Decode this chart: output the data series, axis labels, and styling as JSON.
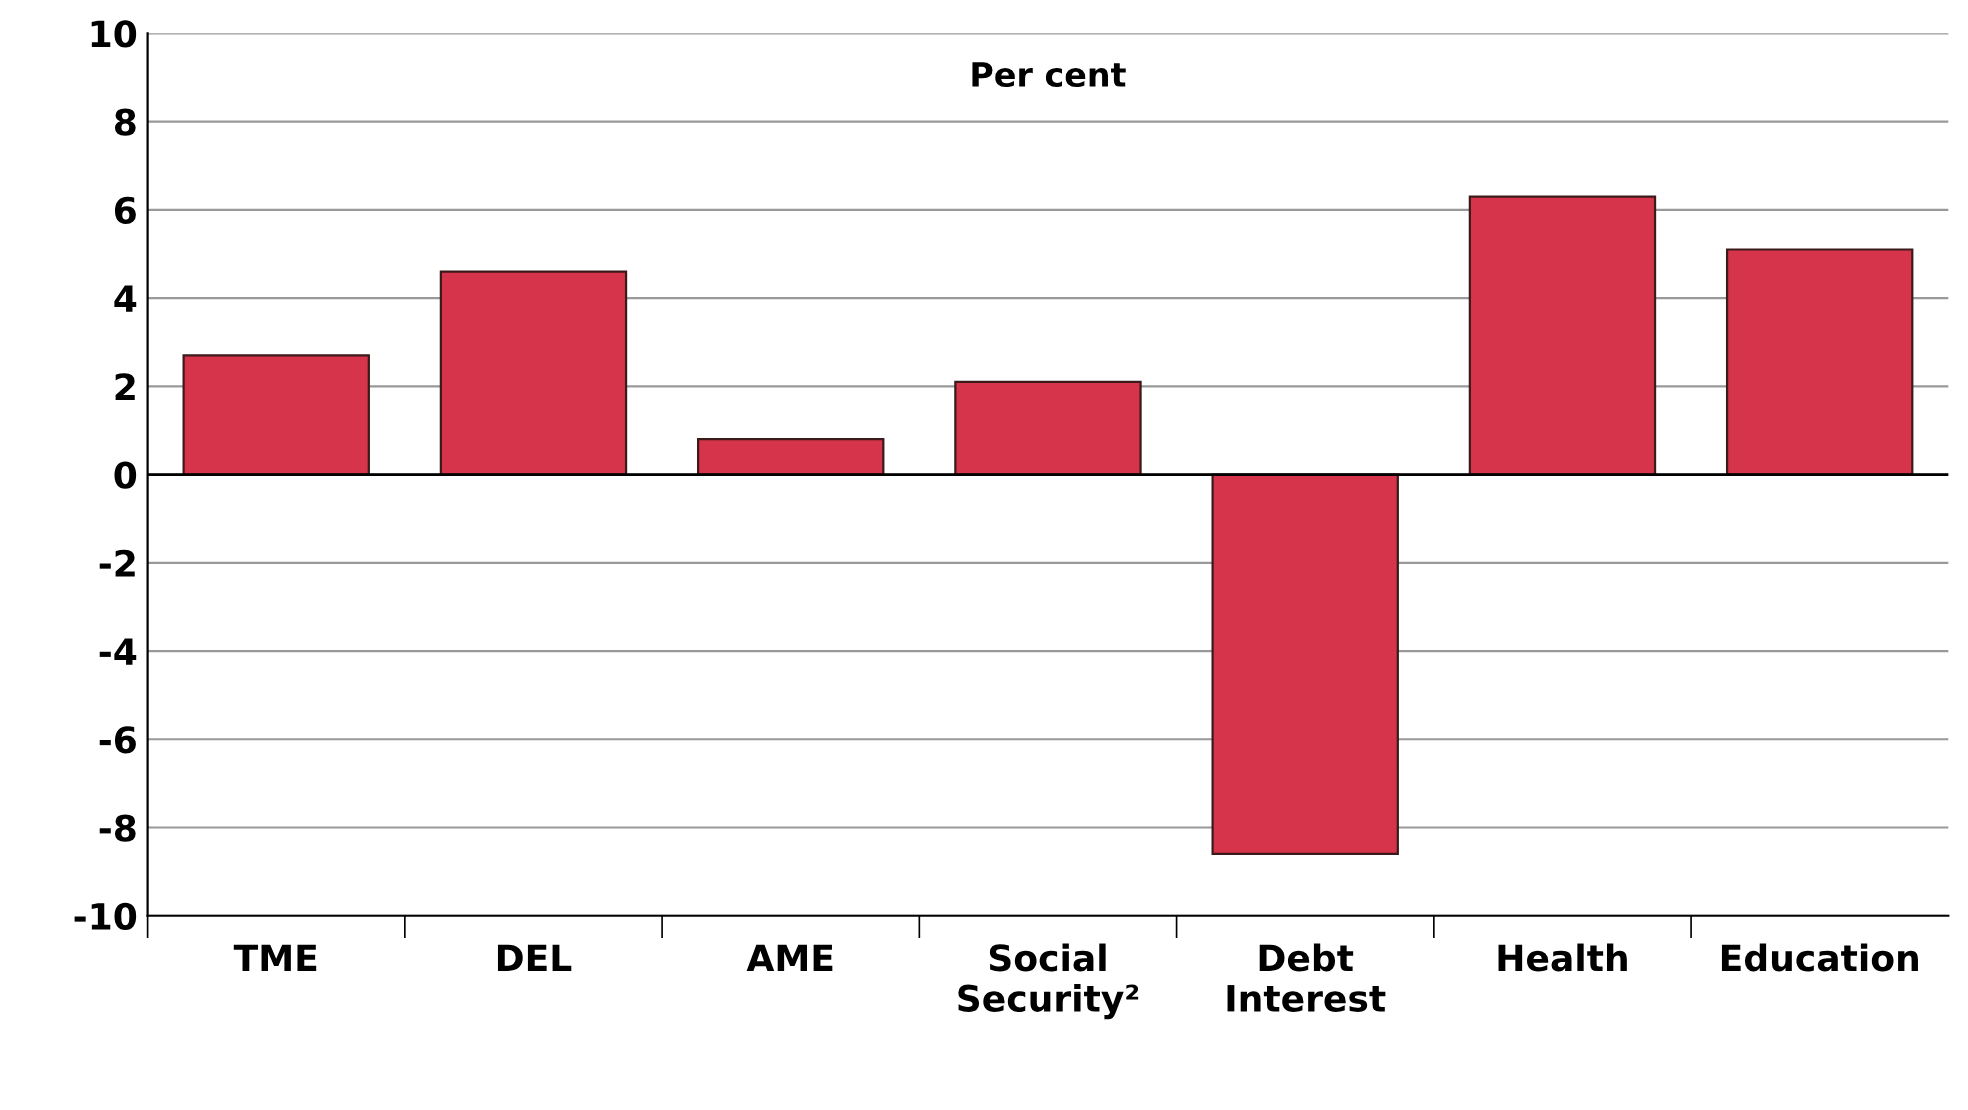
{
  "chart_data": {
    "type": "bar",
    "categories": [
      "TME",
      "DEL",
      "AME",
      "Social\nSecurity²",
      "Debt\nInterest",
      "Health",
      "Education"
    ],
    "values": [
      2.7,
      4.6,
      0.8,
      2.1,
      -8.6,
      6.3,
      5.1
    ],
    "color": "#d6344a",
    "ylim": [
      -10,
      10
    ],
    "yticks": [
      -10,
      -8,
      -6,
      -4,
      -2,
      0,
      2,
      4,
      6,
      8,
      10
    ],
    "grid": "y",
    "annotations": [
      "Per cent"
    ]
  }
}
